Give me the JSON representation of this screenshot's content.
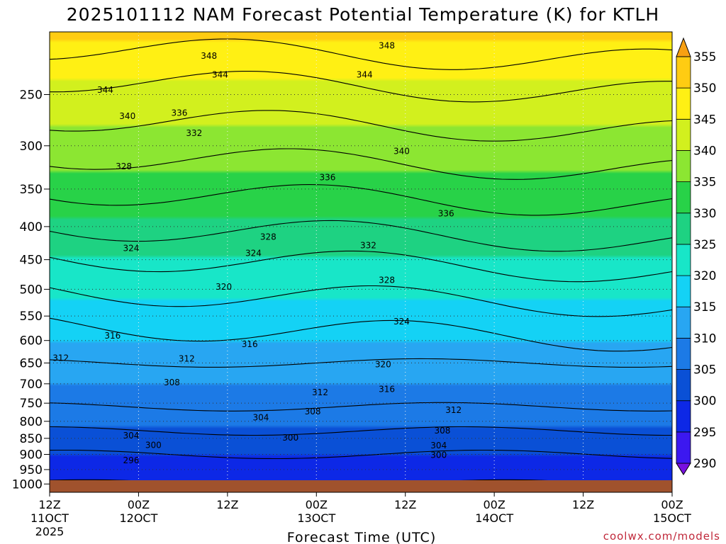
{
  "chart_data": {
    "type": "heatmap",
    "title": "2025101112 NAM Forecast Potential Temperature (K) for KTLH",
    "xlabel": "Forecast Time (UTC)",
    "ylabel": "",
    "credit": "coolwx.com/models",
    "y_axis": {
      "scale": "pressure (hPa), log",
      "range": [
        1030,
        200
      ],
      "ticks": [
        "250",
        "300",
        "350",
        "400",
        "450",
        "500",
        "550",
        "600",
        "650",
        "700",
        "750",
        "800",
        "850",
        "900",
        "950",
        "1000"
      ],
      "tick_values": [
        250,
        300,
        350,
        400,
        450,
        500,
        550,
        600,
        650,
        700,
        750,
        800,
        850,
        900,
        950,
        1000
      ]
    },
    "x_axis": {
      "range_hours": [
        0,
        84
      ],
      "tick_hours": [
        0,
        12,
        24,
        36,
        48,
        60,
        72,
        84
      ],
      "ticks": [
        {
          "time": "12Z",
          "date": "11OCT",
          "year": "2025"
        },
        {
          "time": "00Z",
          "date": "12OCT",
          "year": ""
        },
        {
          "time": "12Z",
          "date": "",
          "year": ""
        },
        {
          "time": "00Z",
          "date": "13OCT",
          "year": ""
        },
        {
          "time": "12Z",
          "date": "",
          "year": ""
        },
        {
          "time": "00Z",
          "date": "14OCT",
          "year": ""
        },
        {
          "time": "12Z",
          "date": "",
          "year": ""
        },
        {
          "time": "00Z",
          "date": "15OCT",
          "year": ""
        }
      ]
    },
    "colorbar": {
      "levels": [
        "290",
        "295",
        "300",
        "305",
        "310",
        "315",
        "320",
        "325",
        "330",
        "335",
        "340",
        "345",
        "350",
        "355"
      ],
      "level_values": [
        290,
        295,
        300,
        305,
        310,
        315,
        320,
        325,
        330,
        335,
        340,
        345,
        350,
        355
      ],
      "colors": [
        "#7810e0",
        "#3c18f0",
        "#0d28e6",
        "#0a50d6",
        "#1c7ae6",
        "#28a6f2",
        "#14d2f5",
        "#18e6c8",
        "#1ed282",
        "#28d248",
        "#8ce632",
        "#d2f01e",
        "#fff014",
        "#ffcc12",
        "#f8a012"
      ]
    },
    "contour_values": [
      296,
      300,
      304,
      308,
      312,
      316,
      320,
      324,
      328,
      332,
      336,
      340,
      344,
      348
    ],
    "contour_labels": [
      {
        "text": "348",
        "hour": 21.5,
        "p": 218
      },
      {
        "text": "348",
        "hour": 45.5,
        "p": 210
      },
      {
        "text": "344",
        "hour": 7.5,
        "p": 246
      },
      {
        "text": "344",
        "hour": 23,
        "p": 233
      },
      {
        "text": "344",
        "hour": 42.5,
        "p": 233
      },
      {
        "text": "340",
        "hour": 10.5,
        "p": 270
      },
      {
        "text": "336",
        "hour": 17.5,
        "p": 267
      },
      {
        "text": "340",
        "hour": 47.5,
        "p": 306
      },
      {
        "text": "332",
        "hour": 19.5,
        "p": 287
      },
      {
        "text": "328",
        "hour": 10,
        "p": 323
      },
      {
        "text": "336",
        "hour": 37.5,
        "p": 336
      },
      {
        "text": "336",
        "hour": 53.5,
        "p": 382
      },
      {
        "text": "328",
        "hour": 29.5,
        "p": 415
      },
      {
        "text": "332",
        "hour": 43,
        "p": 428
      },
      {
        "text": "324",
        "hour": 11,
        "p": 432
      },
      {
        "text": "324",
        "hour": 27.5,
        "p": 440
      },
      {
        "text": "328",
        "hour": 45.5,
        "p": 484
      },
      {
        "text": "320",
        "hour": 23.5,
        "p": 496
      },
      {
        "text": "324",
        "hour": 47.5,
        "p": 561
      },
      {
        "text": "316",
        "hour": 8.5,
        "p": 590
      },
      {
        "text": "316",
        "hour": 27,
        "p": 608
      },
      {
        "text": "312",
        "hour": 1.5,
        "p": 639
      },
      {
        "text": "312",
        "hour": 18.5,
        "p": 640
      },
      {
        "text": "320",
        "hour": 45,
        "p": 653
      },
      {
        "text": "308",
        "hour": 16.5,
        "p": 697
      },
      {
        "text": "316",
        "hour": 45.5,
        "p": 714
      },
      {
        "text": "312",
        "hour": 36.5,
        "p": 722
      },
      {
        "text": "312",
        "hour": 54.5,
        "p": 769
      },
      {
        "text": "308",
        "hour": 35.5,
        "p": 773
      },
      {
        "text": "304",
        "hour": 28.5,
        "p": 789
      },
      {
        "text": "304",
        "hour": 11,
        "p": 842
      },
      {
        "text": "300",
        "hour": 32.5,
        "p": 848
      },
      {
        "text": "300",
        "hour": 14,
        "p": 871
      },
      {
        "text": "308",
        "hour": 53,
        "p": 827
      },
      {
        "text": "304",
        "hour": 52.5,
        "p": 872
      },
      {
        "text": "300",
        "hour": 52.5,
        "p": 902
      },
      {
        "text": "296",
        "hour": 11,
        "p": 919
      }
    ],
    "ground_color": "#a0522d"
  }
}
